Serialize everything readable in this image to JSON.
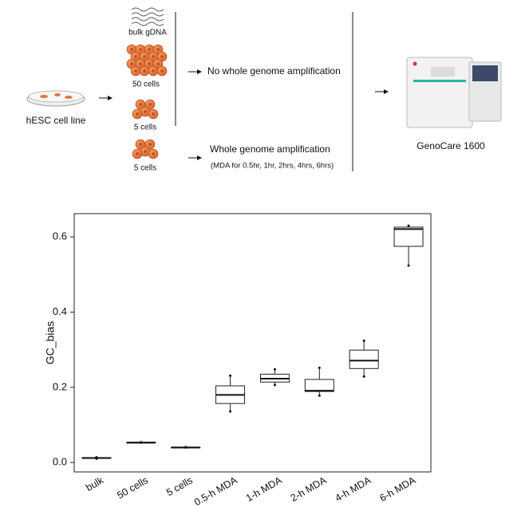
{
  "diagram": {
    "samples": [
      "bulk gDNA",
      "50 cells",
      "5 cells",
      "5 cells"
    ],
    "source": "hESC cell line",
    "branches": [
      "No whole genome amplification",
      "Whole genome amplification"
    ],
    "branch_note": "(MDA for 0.5hr, 1hr, 2hrs, 4hrs, 6hrs)",
    "instrument": "GenoCare 1600"
  },
  "chart_data": {
    "type": "boxplot",
    "ylabel": "GC_bias",
    "categories": [
      "bulk",
      "50 cells",
      "5 cells",
      "0.5-h MDA",
      "1-h MDA",
      "2-h MDA",
      "4-h MDA",
      "6-h MDA"
    ],
    "boxes": [
      {
        "min": 0.01,
        "q1": 0.011,
        "median": 0.012,
        "q3": 0.013,
        "max": 0.014
      },
      {
        "min": 0.053,
        "q1": 0.053,
        "median": 0.053,
        "q3": 0.054,
        "max": 0.054
      },
      {
        "min": 0.04,
        "q1": 0.04,
        "median": 0.04,
        "q3": 0.041,
        "max": 0.041
      },
      {
        "min": 0.136,
        "q1": 0.157,
        "median": 0.18,
        "q3": 0.204,
        "max": 0.231
      },
      {
        "min": 0.206,
        "q1": 0.214,
        "median": 0.223,
        "q3": 0.235,
        "max": 0.248
      },
      {
        "min": 0.178,
        "q1": 0.189,
        "median": 0.191,
        "q3": 0.221,
        "max": 0.252
      },
      {
        "min": 0.229,
        "q1": 0.25,
        "median": 0.271,
        "q3": 0.299,
        "max": 0.324
      },
      {
        "min": 0.524,
        "q1": 0.575,
        "median": 0.621,
        "q3": 0.626,
        "max": 0.63
      }
    ],
    "color": "#ffffff",
    "ylim": [
      -0.025,
      0.662
    ],
    "yticks": [
      {
        "value": 0,
        "label": "0.0"
      },
      0.2,
      0.4,
      0.6
    ]
  }
}
